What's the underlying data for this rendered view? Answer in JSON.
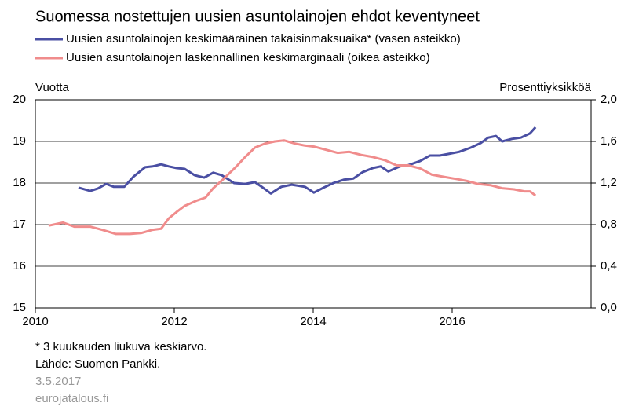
{
  "chart_data": {
    "type": "line",
    "title": "Suomessa nostettujen uusien asuntolainojen ehdot keventyneet",
    "y_label": "Vuotta",
    "y2_label": "Prosenttiyksikköä",
    "xlim": [
      2010,
      2018
    ],
    "xticks": [
      2010,
      2012,
      2014,
      2016
    ],
    "ylim": [
      15,
      20
    ],
    "yticks": [
      15,
      16,
      17,
      18,
      19,
      20
    ],
    "y2lim": [
      0,
      2.0
    ],
    "y2ticks": [
      {
        "value": 0,
        "label": "0,0"
      },
      {
        "value": 0.4,
        "label": "0,4"
      },
      {
        "value": 0.8,
        "label": "0,8"
      },
      {
        "value": 1.2,
        "label": "1,2"
      },
      {
        "value": 1.6,
        "label": "1,6"
      },
      {
        "value": 2.0,
        "label": "2,0"
      }
    ],
    "grid": true,
    "series": [
      {
        "name": "Uusien asuntolainojen keskimääräinen takaisinmaksuaika* (vasen asteikko)",
        "color": "#4a4fa3",
        "axis": "y",
        "x": [
          2010.62,
          2010.79,
          2010.9,
          2011.02,
          2011.13,
          2011.28,
          2011.41,
          2011.58,
          2011.69,
          2011.81,
          2011.92,
          2012.03,
          2012.15,
          2012.29,
          2012.43,
          2012.56,
          2012.68,
          2012.86,
          2013.02,
          2013.16,
          2013.25,
          2013.39,
          2013.54,
          2013.69,
          2013.88,
          2014.01,
          2014.15,
          2014.29,
          2014.44,
          2014.58,
          2014.71,
          2014.86,
          2014.97,
          2015.08,
          2015.25,
          2015.37,
          2015.54,
          2015.68,
          2015.82,
          2015.95,
          2016.1,
          2016.27,
          2016.41,
          2016.52,
          2016.63,
          2016.72,
          2016.86,
          2016.99,
          2017.12,
          2017.2
        ],
        "values": [
          17.89,
          17.81,
          17.87,
          17.98,
          17.91,
          17.91,
          18.15,
          18.38,
          18.4,
          18.45,
          18.4,
          18.36,
          18.34,
          18.19,
          18.13,
          18.25,
          18.19,
          18.0,
          17.98,
          18.02,
          17.92,
          17.75,
          17.91,
          17.96,
          17.91,
          17.77,
          17.89,
          18.0,
          18.08,
          18.11,
          18.26,
          18.36,
          18.4,
          18.28,
          18.4,
          18.43,
          18.53,
          18.66,
          18.66,
          18.7,
          18.75,
          18.85,
          18.96,
          19.09,
          19.13,
          19.0,
          19.06,
          19.09,
          19.19,
          19.34
        ]
      },
      {
        "name": "Uusien asuntolainojen laskennallinen keskimarginaali (oikea asteikko)",
        "color": "#f08c8c",
        "axis": "y2",
        "x": [
          2010.19,
          2010.4,
          2010.56,
          2010.79,
          2010.96,
          2011.16,
          2011.36,
          2011.53,
          2011.69,
          2011.81,
          2011.92,
          2012.03,
          2012.15,
          2012.32,
          2012.45,
          2012.56,
          2012.71,
          2012.88,
          2013.02,
          2013.16,
          2013.31,
          2013.45,
          2013.58,
          2013.73,
          2013.88,
          2014.01,
          2014.18,
          2014.35,
          2014.52,
          2014.69,
          2014.86,
          2015.03,
          2015.2,
          2015.37,
          2015.54,
          2015.71,
          2015.88,
          2016.05,
          2016.21,
          2016.38,
          2016.55,
          2016.72,
          2016.89,
          2017.04,
          2017.12,
          2017.2
        ],
        "values": [
          0.79,
          0.82,
          0.78,
          0.78,
          0.75,
          0.71,
          0.71,
          0.72,
          0.75,
          0.76,
          0.86,
          0.92,
          0.98,
          1.03,
          1.06,
          1.15,
          1.24,
          1.35,
          1.45,
          1.54,
          1.58,
          1.6,
          1.61,
          1.58,
          1.56,
          1.55,
          1.52,
          1.49,
          1.5,
          1.47,
          1.45,
          1.42,
          1.37,
          1.37,
          1.34,
          1.28,
          1.26,
          1.24,
          1.22,
          1.19,
          1.18,
          1.15,
          1.14,
          1.12,
          1.12,
          1.08
        ]
      }
    ],
    "notes": [
      "* 3 kuukauden liukuva keskiarvo.",
      "Lähde: Suomen Pankki."
    ],
    "date": "3.5.2017",
    "source_site": "eurojatalous.fi"
  }
}
